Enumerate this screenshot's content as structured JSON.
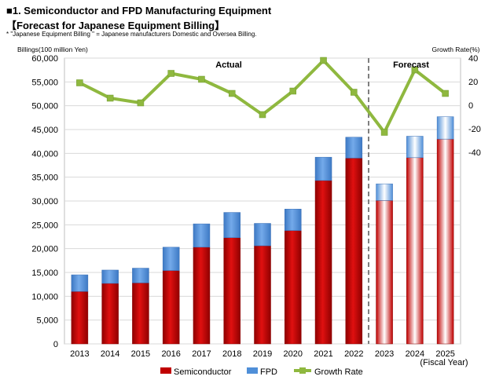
{
  "header": {
    "title": "■1. Semiconductor and FPD Manufacturing Equipment",
    "subtitle": "【Forecast for Japanese Equipment Billing】",
    "note": "* \"Japanese Equipment Billing \" = Japanese manufacturers Domestic and Oversea Billing."
  },
  "chart_data": {
    "type": "bar",
    "stacked": true,
    "categories": [
      "2013",
      "2014",
      "2015",
      "2016",
      "2017",
      "2018",
      "2019",
      "2020",
      "2021",
      "2022",
      "2023",
      "2024",
      "2025"
    ],
    "series": [
      {
        "name": "Semiconductor",
        "color": "#c00000",
        "values": [
          11000,
          12700,
          12800,
          15400,
          20300,
          22300,
          20600,
          23800,
          34300,
          39000,
          30100,
          39100,
          43000
        ]
      },
      {
        "name": "FPD",
        "color": "#4f8fd8",
        "values": [
          3500,
          2800,
          3100,
          4900,
          4900,
          5300,
          4700,
          4500,
          4900,
          4400,
          3500,
          4500,
          4700
        ]
      },
      {
        "name": "Growth Rate",
        "type": "line",
        "color": "#8fb83f",
        "axis": "right",
        "values": [
          19,
          6,
          2,
          27,
          22,
          10,
          -8,
          12,
          38,
          11,
          -23,
          30,
          10
        ]
      }
    ],
    "forecast_categories": [
      "2023",
      "2024",
      "2025"
    ],
    "yleft": {
      "label": "Billings(100 million Yen)",
      "min": 0,
      "max": 60000,
      "ticks": [
        "0",
        "5,000",
        "10,000",
        "15,000",
        "20,000",
        "25,000",
        "30,000",
        "35,000",
        "40,000",
        "45,000",
        "50,000",
        "55,000",
        "60,000"
      ]
    },
    "yright": {
      "label": "Growth Rate(%)",
      "ticks": [
        "40",
        "20",
        "0",
        "-20",
        "-40"
      ],
      "tick_values": [
        40,
        20,
        0,
        -20,
        -40
      ]
    },
    "xlabel": "(Fiscal Year)",
    "annotations": {
      "actual": "Actual",
      "forecast": "Forecast"
    },
    "legend": [
      "Semiconductor",
      "FPD",
      "Growth Rate"
    ]
  }
}
